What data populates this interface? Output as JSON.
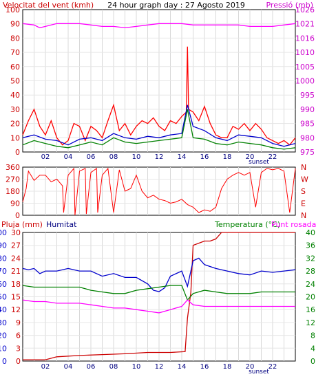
{
  "chart_data": [
    {
      "id": "wind-pressure",
      "type": "line",
      "title": "24 hour graph day : 27 Agosto 2019",
      "left_axis_label": "Velocitat del vent (kmh)",
      "right_axis_label": "Pressió (mb)",
      "ylim_left": [
        0,
        100
      ],
      "ylim_right": [
        975,
        1026
      ],
      "left_ticks": [
        "0",
        "10",
        "20",
        "30",
        "40",
        "50",
        "60",
        "70",
        "80",
        "90",
        "100"
      ],
      "right_ticks": [
        "975",
        "980",
        "985",
        "990",
        "995",
        "1000",
        "1005",
        "1010",
        "1016",
        "1021",
        "1026"
      ],
      "x_ticks": [
        "02",
        "04",
        "06",
        "08",
        "10",
        "12",
        "14",
        "16",
        "18",
        "20",
        "22"
      ],
      "sunset_label": "sunset",
      "grid": true,
      "series": [
        {
          "color": "#ff0000",
          "x": [
            0,
            0.5,
            1,
            1.5,
            2,
            2.5,
            3,
            3.5,
            4,
            4.5,
            5,
            5.5,
            6,
            6.5,
            7,
            7.5,
            8,
            8.5,
            9,
            9.5,
            10,
            10.5,
            11,
            11.5,
            12,
            12.5,
            13,
            13.5,
            14,
            14.4,
            14.5,
            14.6,
            15,
            15.5,
            16,
            16.5,
            17,
            17.5,
            18,
            18.5,
            19,
            19.5,
            20,
            20.5,
            21,
            21.5,
            22,
            22.5,
            23,
            23.5,
            24
          ],
          "y": [
            12,
            22,
            30,
            18,
            12,
            22,
            10,
            5,
            8,
            20,
            18,
            8,
            18,
            15,
            10,
            22,
            33,
            15,
            20,
            12,
            18,
            22,
            20,
            24,
            18,
            15,
            22,
            20,
            25,
            28,
            74,
            30,
            28,
            22,
            32,
            20,
            12,
            10,
            10,
            18,
            16,
            20,
            15,
            20,
            16,
            10,
            8,
            6,
            8,
            5,
            10
          ]
        },
        {
          "color": "#0000cc",
          "x": [
            0,
            1,
            2,
            3,
            4,
            5,
            6,
            7,
            8,
            9,
            10,
            11,
            12,
            13,
            14,
            14.5,
            15,
            16,
            17,
            18,
            19,
            20,
            21,
            22,
            23,
            24
          ],
          "y": [
            10,
            12,
            9,
            8,
            5,
            9,
            10,
            8,
            13,
            10,
            9,
            11,
            10,
            12,
            13,
            33,
            18,
            15,
            10,
            8,
            12,
            11,
            10,
            6,
            4,
            6
          ]
        },
        {
          "color": "#008000",
          "x": [
            0,
            1,
            2,
            3,
            4,
            5,
            6,
            7,
            8,
            9,
            10,
            11,
            12,
            13,
            14,
            14.5,
            15,
            16,
            17,
            18,
            19,
            20,
            21,
            22,
            23,
            24
          ],
          "y": [
            5,
            8,
            6,
            4,
            3,
            5,
            7,
            5,
            10,
            7,
            6,
            7,
            8,
            9,
            10,
            30,
            10,
            9,
            6,
            5,
            7,
            6,
            5,
            3,
            2,
            3
          ]
        },
        {
          "color": "#ff00ff",
          "axis": "right",
          "x": [
            0,
            1,
            1.5,
            2,
            3,
            4,
            5,
            6,
            7,
            8,
            9,
            10,
            11,
            12,
            13,
            14,
            15,
            16,
            17,
            18,
            19,
            20,
            21,
            22,
            23,
            24
          ],
          "y": [
            1021,
            1020.5,
            1019.5,
            1020,
            1021,
            1021,
            1021,
            1020.5,
            1020,
            1020,
            1019.5,
            1020,
            1020.5,
            1021,
            1021,
            1021,
            1020.5,
            1020.5,
            1020.5,
            1020.5,
            1020.5,
            1020,
            1020,
            1020,
            1020.5,
            1021
          ]
        }
      ]
    },
    {
      "id": "wind-direction",
      "type": "line",
      "ylim": [
        0,
        360
      ],
      "left_ticks": [
        "0",
        "90",
        "180",
        "270",
        "360"
      ],
      "right_ticks": [
        "N",
        "E",
        "S",
        "W",
        "N"
      ],
      "x_ticks": [],
      "grid": true,
      "series": [
        {
          "color": "#ff0000",
          "x": [
            0,
            0.3,
            0.5,
            1,
            1.5,
            2,
            2.5,
            3,
            3.5,
            3.6,
            4,
            4.5,
            4.6,
            5,
            5.5,
            5.6,
            6,
            6.5,
            6.6,
            7,
            7.5,
            8,
            8.5,
            9,
            9.5,
            10,
            10.5,
            11,
            11.5,
            12,
            12.5,
            13,
            13.5,
            14,
            14.5,
            15,
            15.5,
            16,
            16.5,
            17,
            17.5,
            18,
            18.5,
            19,
            19.5,
            20,
            20.5,
            21,
            21.5,
            22,
            22.5,
            23,
            23.5,
            24
          ],
          "y": [
            100,
            200,
            330,
            260,
            300,
            300,
            250,
            270,
            220,
            20,
            300,
            350,
            0,
            330,
            350,
            10,
            320,
            350,
            20,
            300,
            350,
            20,
            340,
            180,
            200,
            300,
            180,
            130,
            150,
            120,
            110,
            90,
            100,
            120,
            80,
            60,
            20,
            40,
            30,
            60,
            200,
            270,
            300,
            320,
            300,
            320,
            60,
            320,
            350,
            340,
            350,
            330,
            20,
            350
          ]
        }
      ]
    },
    {
      "id": "rain-humidity-temp",
      "type": "line",
      "rain_axis_label": "Pluja (mm)",
      "humidity_axis_label": "Humitat",
      "temp_axis_label": "Temperatura (°C)",
      "dewpoint_axis_label": "Punt rosada",
      "ylim_humidity": [
        0,
        100
      ],
      "ylim_rain": [
        0,
        30
      ],
      "ylim_temp": [
        0,
        40
      ],
      "humidity_ticks": [
        "0",
        "10",
        "20",
        "30",
        "40",
        "50",
        "60",
        "70",
        "80",
        "90",
        "100"
      ],
      "rain_ticks": [
        "0",
        "3",
        "6",
        "9",
        "12",
        "15",
        "18",
        "21",
        "24",
        "27",
        "30"
      ],
      "temp_ticks": [
        "0",
        "4",
        "8",
        "12",
        "16",
        "20",
        "24",
        "28",
        "32",
        "36",
        "40"
      ],
      "x_ticks": [
        "02",
        "04",
        "06",
        "08",
        "10",
        "12",
        "14",
        "16",
        "18",
        "20",
        "22"
      ],
      "sunset_label": "sunset",
      "grid": true,
      "series": [
        {
          "color": "#cc0000",
          "axis": "rain",
          "x": [
            0,
            2,
            3,
            5,
            7,
            9,
            11,
            13,
            14.3,
            14.5,
            14.8,
            15,
            15.5,
            16,
            16.5,
            17,
            17.5,
            18,
            24
          ],
          "y": [
            0.3,
            0.3,
            1,
            1.3,
            1.5,
            1.7,
            2,
            2,
            2.2,
            10,
            16,
            27,
            27.5,
            28,
            28,
            28.5,
            30,
            30,
            30
          ]
        },
        {
          "color": "#0000cc",
          "axis": "humidity",
          "x": [
            0,
            0.5,
            1,
            1.5,
            2,
            3,
            4,
            5,
            6,
            7,
            8,
            9,
            10,
            11,
            11.5,
            12,
            12.5,
            13,
            14,
            14.5,
            15,
            15.5,
            16,
            17,
            18,
            19,
            20,
            21,
            22,
            23,
            24
          ],
          "y": [
            72,
            71,
            72,
            68,
            70,
            70,
            72,
            70,
            70,
            66,
            68,
            65,
            65,
            60,
            55,
            54,
            57,
            66,
            70,
            58,
            78,
            80,
            75,
            72,
            70,
            68,
            67,
            70,
            69,
            70,
            71
          ]
        },
        {
          "color": "#008000",
          "axis": "temp",
          "x": [
            0,
            1,
            2,
            3,
            4,
            5,
            6,
            7,
            8,
            9,
            10,
            11,
            12,
            13,
            14,
            14.5,
            15,
            16,
            17,
            18,
            19,
            20,
            21,
            22,
            23,
            24
          ],
          "y": [
            23.5,
            23,
            23,
            23,
            23,
            23,
            22,
            21.5,
            21,
            21,
            22,
            22.5,
            23,
            23.5,
            23.5,
            19,
            21,
            22,
            21.5,
            21,
            21,
            21,
            21.5,
            21.5,
            21.5,
            21.5
          ]
        },
        {
          "color": "#ff00ff",
          "axis": "temp",
          "x": [
            0,
            1,
            2,
            3,
            4,
            5,
            6,
            7,
            8,
            9,
            10,
            11,
            12,
            13,
            14,
            14.5,
            15,
            16,
            17,
            18,
            19,
            20,
            21,
            22,
            23,
            24
          ],
          "y": [
            19,
            18.5,
            18.5,
            18,
            18,
            18,
            17.5,
            17,
            16.5,
            16.5,
            16,
            15.5,
            15,
            16,
            17,
            19,
            17.5,
            17,
            17,
            17,
            17,
            17,
            17,
            17,
            17,
            17
          ]
        }
      ]
    }
  ]
}
